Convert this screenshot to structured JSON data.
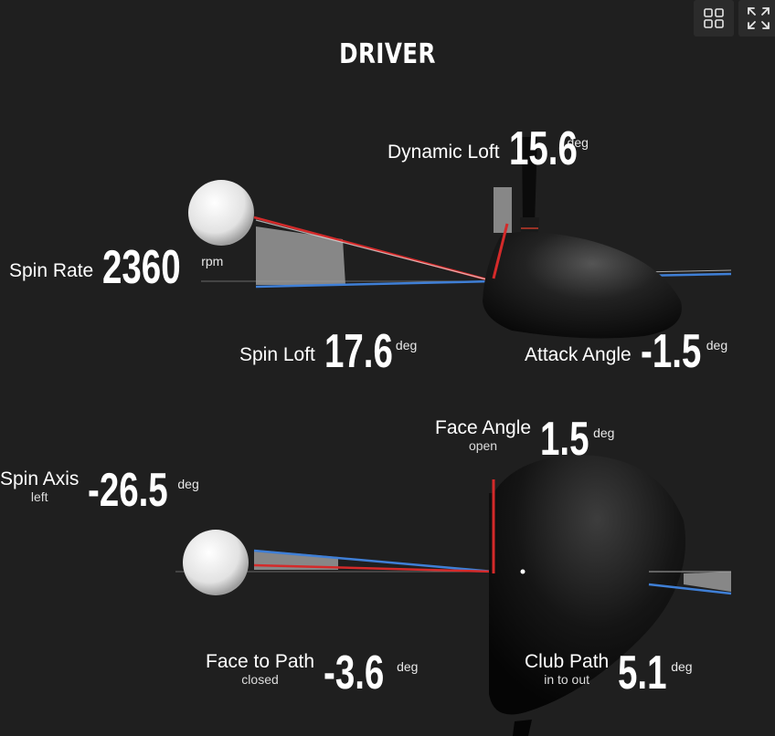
{
  "title": "DRIVER",
  "toolbar": {
    "grid_icon": "grid-icon",
    "expand_icon": "expand-icon"
  },
  "metrics": {
    "dynamic_loft": {
      "label": "Dynamic Loft",
      "value": "15.6",
      "unit": "deg"
    },
    "spin_rate": {
      "label": "Spin Rate",
      "value": "2360",
      "unit": "rpm"
    },
    "spin_loft": {
      "label": "Spin Loft",
      "value": "17.6",
      "unit": "deg"
    },
    "attack_angle": {
      "label": "Attack Angle",
      "value": "-1.5",
      "unit": "deg"
    },
    "face_angle": {
      "label": "Face Angle",
      "sub": "open",
      "value": "1.5",
      "unit": "deg"
    },
    "spin_axis": {
      "label": "Spin Axis",
      "sub": "left",
      "value": "-26.5",
      "unit": "deg"
    },
    "face_to_path": {
      "label": "Face to Path",
      "sub": "closed",
      "value": "-3.6",
      "unit": "deg"
    },
    "club_path": {
      "label": "Club Path",
      "sub": "in to out",
      "value": "5.1",
      "unit": "deg"
    }
  },
  "colors": {
    "background": "#1f1f1f",
    "face_line": "#d42a2a",
    "path_line": "#3f7fd6",
    "angle_wedge": "#9a9a9a"
  }
}
